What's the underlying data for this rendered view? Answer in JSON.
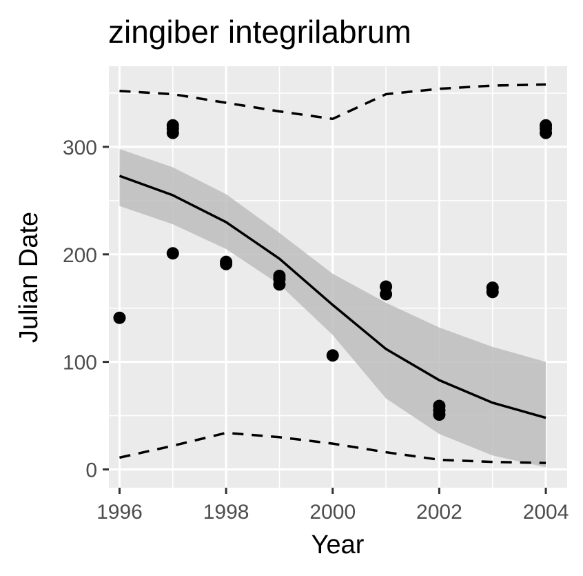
{
  "chart_data": {
    "type": "scatter",
    "title": "zingiber integrilabrum",
    "xlabel": "Year",
    "ylabel": "Julian Date",
    "xlim": [
      1995.8,
      2004.4
    ],
    "ylim": [
      -17,
      375
    ],
    "x_ticks": [
      1996,
      1998,
      2000,
      2002,
      2004
    ],
    "x_tick_labels": [
      "1996",
      "1998",
      "2000",
      "2002",
      "2004"
    ],
    "y_ticks": [
      0,
      100,
      200,
      300
    ],
    "y_tick_labels": [
      "0",
      "100",
      "200",
      "300"
    ],
    "grid": true,
    "legend": "none",
    "colors": {
      "panel": "#ebebeb",
      "grid": "#ffffff",
      "points": "#000000",
      "band": "#bdbdbd",
      "line": "#000000",
      "tick_text": "#4d4d4d"
    },
    "points": [
      {
        "x": 1996,
        "y": 141
      },
      {
        "x": 1997,
        "y": 320
      },
      {
        "x": 1997,
        "y": 317
      },
      {
        "x": 1997,
        "y": 313
      },
      {
        "x": 1997,
        "y": 201
      },
      {
        "x": 1998,
        "y": 193
      },
      {
        "x": 1998,
        "y": 191
      },
      {
        "x": 1999,
        "y": 180
      },
      {
        "x": 1999,
        "y": 177
      },
      {
        "x": 1999,
        "y": 172
      },
      {
        "x": 2000,
        "y": 106
      },
      {
        "x": 2001,
        "y": 170
      },
      {
        "x": 2001,
        "y": 163
      },
      {
        "x": 2002,
        "y": 59
      },
      {
        "x": 2002,
        "y": 55
      },
      {
        "x": 2002,
        "y": 51
      },
      {
        "x": 2003,
        "y": 169
      },
      {
        "x": 2003,
        "y": 165
      },
      {
        "x": 2004,
        "y": 320
      },
      {
        "x": 2004,
        "y": 317
      },
      {
        "x": 2004,
        "y": 313
      }
    ],
    "series": [
      {
        "type": "line",
        "x": [
          1996,
          1997,
          1998,
          1999,
          2000,
          2001,
          2002,
          2003,
          2004
        ],
        "values": [
          273,
          255,
          230,
          196,
          153,
          112,
          83,
          62,
          48
        ]
      },
      {
        "type": "band",
        "x": [
          1996,
          1997,
          1998,
          1999,
          2000,
          2001,
          2002,
          2003,
          2004
        ],
        "lower": [
          245,
          228,
          205,
          172,
          125,
          66,
          33,
          13,
          2
        ],
        "upper": [
          298,
          281,
          256,
          220,
          182,
          155,
          132,
          114,
          100
        ]
      },
      {
        "type": "dashed",
        "x": [
          1996,
          1997,
          1998,
          1999,
          2000,
          2001,
          2002,
          2003,
          2004
        ],
        "values": [
          352,
          349,
          341,
          333,
          326,
          349,
          354,
          357,
          358
        ]
      },
      {
        "type": "dashed",
        "x": [
          1996,
          1997,
          1998,
          1999,
          2000,
          2001,
          2002,
          2003,
          2004
        ],
        "values": [
          11,
          22,
          34,
          30,
          24,
          16,
          9,
          7,
          6
        ]
      }
    ]
  }
}
